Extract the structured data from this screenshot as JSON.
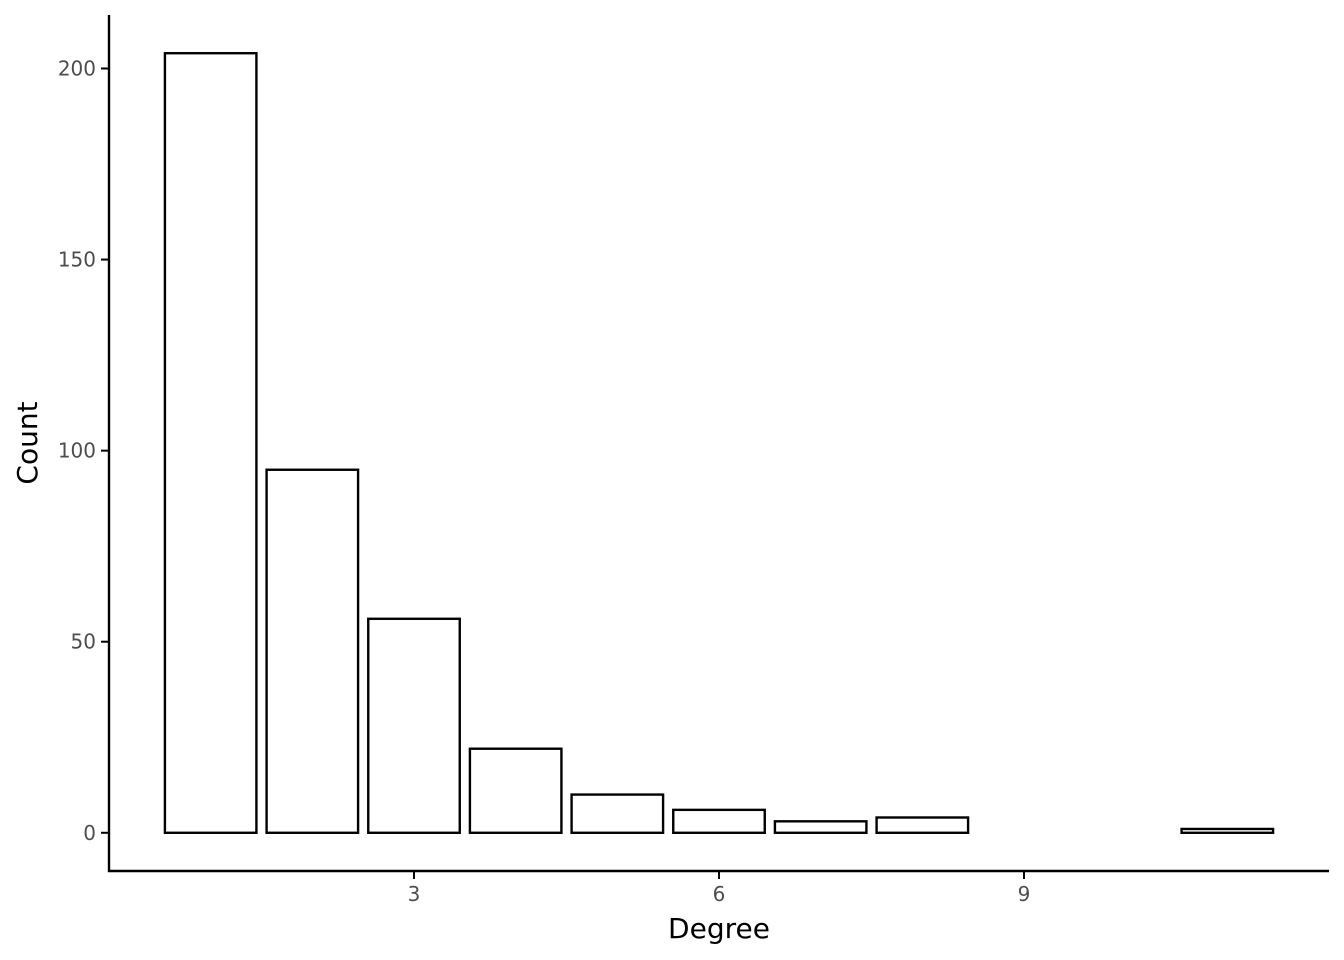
{
  "chart_data": {
    "type": "bar",
    "x": [
      1,
      2,
      3,
      4,
      5,
      6,
      7,
      8,
      11
    ],
    "values": [
      204,
      95,
      56,
      22,
      10,
      6,
      3,
      4,
      1
    ],
    "xlabel": "Degree",
    "ylabel": "Count",
    "xlim": [
      0,
      12
    ],
    "ylim": [
      -10,
      214
    ],
    "xticks": [
      3,
      6,
      9
    ],
    "yticks": [
      0,
      50,
      100,
      150,
      200
    ],
    "grid": false,
    "legend": "none",
    "bar_fill": "#ffffff",
    "bar_stroke": "#000000"
  }
}
